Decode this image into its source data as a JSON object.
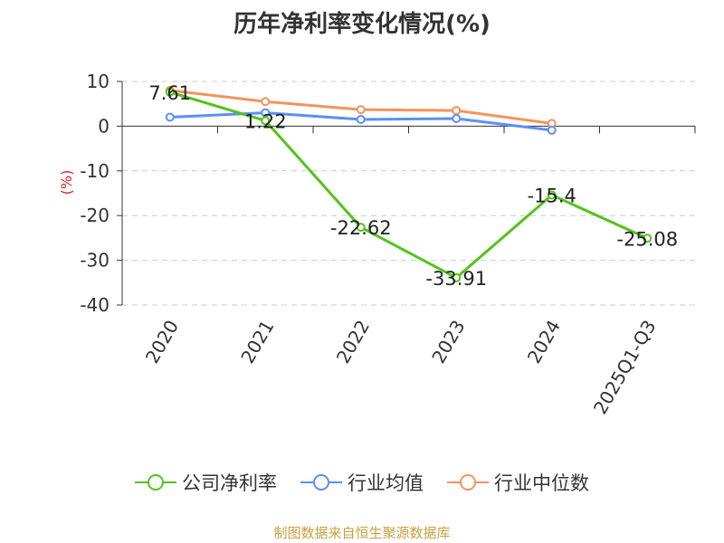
{
  "chart_data": {
    "type": "line",
    "title": "历年净利率变化情况(%)",
    "ylabel": "(%)",
    "xlabel": "",
    "categories": [
      "2020",
      "2021",
      "2022",
      "2023",
      "2024",
      "2025Q1-Q3"
    ],
    "ylim": [
      -40,
      10
    ],
    "yticks": [
      10,
      0,
      -10,
      -20,
      -30,
      -40
    ],
    "grid": true,
    "legend_position": "bottom",
    "series": [
      {
        "name": "公司净利率",
        "color": "#52c41a",
        "values": [
          7.61,
          1.22,
          -22.62,
          -33.91,
          -15.4,
          -25.08
        ],
        "labels": [
          "7.61",
          "1.22",
          "-22.62",
          "-33.91",
          "-15.4",
          "-25.08"
        ]
      },
      {
        "name": "行业均值",
        "color": "#5b8ff9",
        "values": [
          2.0,
          3.0,
          1.5,
          1.7,
          -0.9,
          null
        ]
      },
      {
        "name": "行业中位数",
        "color": "#f6925b",
        "values": [
          8.0,
          5.5,
          3.7,
          3.5,
          0.6,
          null
        ]
      }
    ]
  },
  "source_note": "制图数据来自恒生聚源数据库"
}
